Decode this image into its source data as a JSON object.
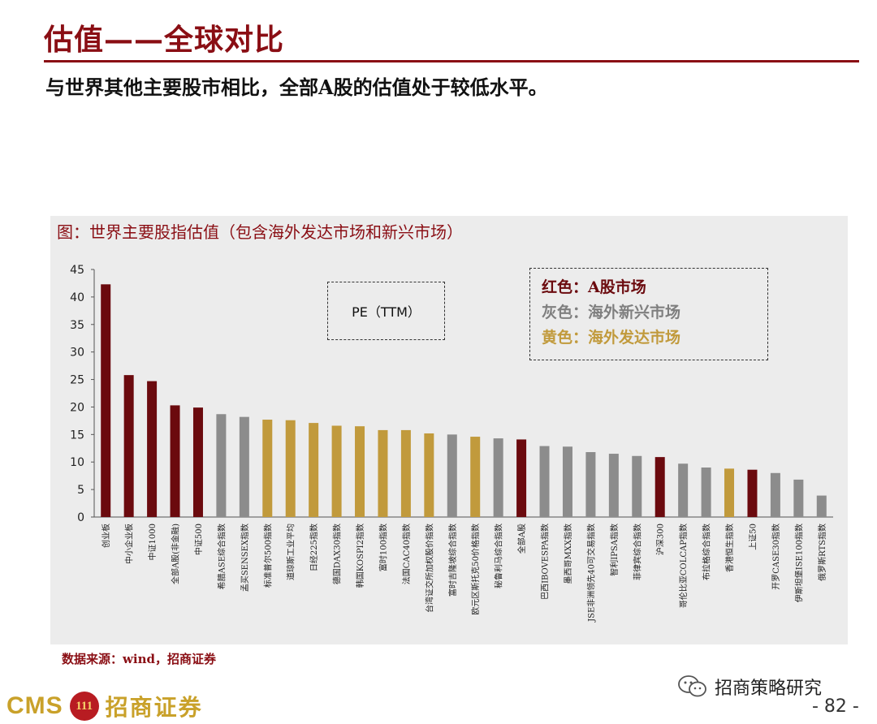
{
  "header": {
    "title": "估值——全球对比",
    "subtitle": "与世界其他主要股市相比，全部A股的估值处于较低水平。"
  },
  "chart_caption": "图：世界主要股指估值（包含海外发达市场和新兴市场）",
  "pe_label": "PE（TTM）",
  "legend": {
    "items": [
      {
        "text": "红色：A股市场",
        "color": "#6b0a0e"
      },
      {
        "text": "灰色：海外新兴市场",
        "color": "#7f7f7f"
      },
      {
        "text": "黄色：海外发达市场",
        "color": "#c19a3c"
      }
    ]
  },
  "colors": {
    "a_share": "#6b0a0e",
    "emerging": "#8c8c8c",
    "developed": "#c19a3c",
    "brand_red": "#8a0e14",
    "brand_gold": "#c9a12a"
  },
  "chart_data": {
    "type": "bar",
    "ylim": [
      0,
      45
    ],
    "yticks": [
      0,
      5,
      10,
      15,
      20,
      25,
      30,
      35,
      40,
      45
    ],
    "grid": false,
    "categories": [
      "创业板",
      "中小企业板",
      "中证1000",
      "全部A股(非金融)",
      "中证500",
      "希腊ASE综合指数",
      "孟买SENSEX指数",
      "标准普尔500指数",
      "道琼斯工业平均",
      "日经225指数",
      "德国DAX30指数",
      "韩国KOSPI2指数",
      "富时100指数",
      "法国CAC40指数",
      "台湾证交所加权股价指数",
      "富时吉隆坡综合指数",
      "欧元区斯托克50价格指数",
      "秘鲁利马综合指数",
      "全部A股",
      "巴西IBOVESPA指数",
      "墨西哥MXX指数",
      "JSE非洲领先40可交易指数",
      "智利IPSA指数",
      "菲律宾综合指数",
      "沪深300",
      "哥伦比亚COLCAP指数",
      "布拉格综合指数",
      "香港恒生指数",
      "上证50",
      "开罗CASE30指数",
      "伊斯坦堡ISE100指数",
      "俄罗斯RTS指数"
    ],
    "values": [
      42.3,
      25.8,
      24.7,
      20.3,
      19.9,
      18.7,
      18.2,
      17.7,
      17.6,
      17.1,
      16.6,
      16.5,
      15.8,
      15.8,
      15.2,
      15.0,
      14.6,
      14.3,
      14.1,
      12.9,
      12.8,
      11.8,
      11.5,
      11.1,
      10.9,
      9.7,
      9.0,
      8.8,
      8.6,
      8.0,
      6.8,
      3.9
    ],
    "groups": [
      "a_share",
      "a_share",
      "a_share",
      "a_share",
      "a_share",
      "emerging",
      "emerging",
      "developed",
      "developed",
      "developed",
      "developed",
      "developed",
      "developed",
      "developed",
      "developed",
      "emerging",
      "developed",
      "emerging",
      "a_share",
      "emerging",
      "emerging",
      "emerging",
      "emerging",
      "emerging",
      "a_share",
      "emerging",
      "emerging",
      "developed",
      "a_share",
      "emerging",
      "emerging",
      "emerging"
    ]
  },
  "footer": {
    "source": "数据来源：wind，招商证券",
    "logo_latin": "CMS",
    "logo_emblem": "111",
    "logo_chinese": "招商证券",
    "wechat_account": "招商策略研究",
    "page_number": "- 82 -"
  }
}
